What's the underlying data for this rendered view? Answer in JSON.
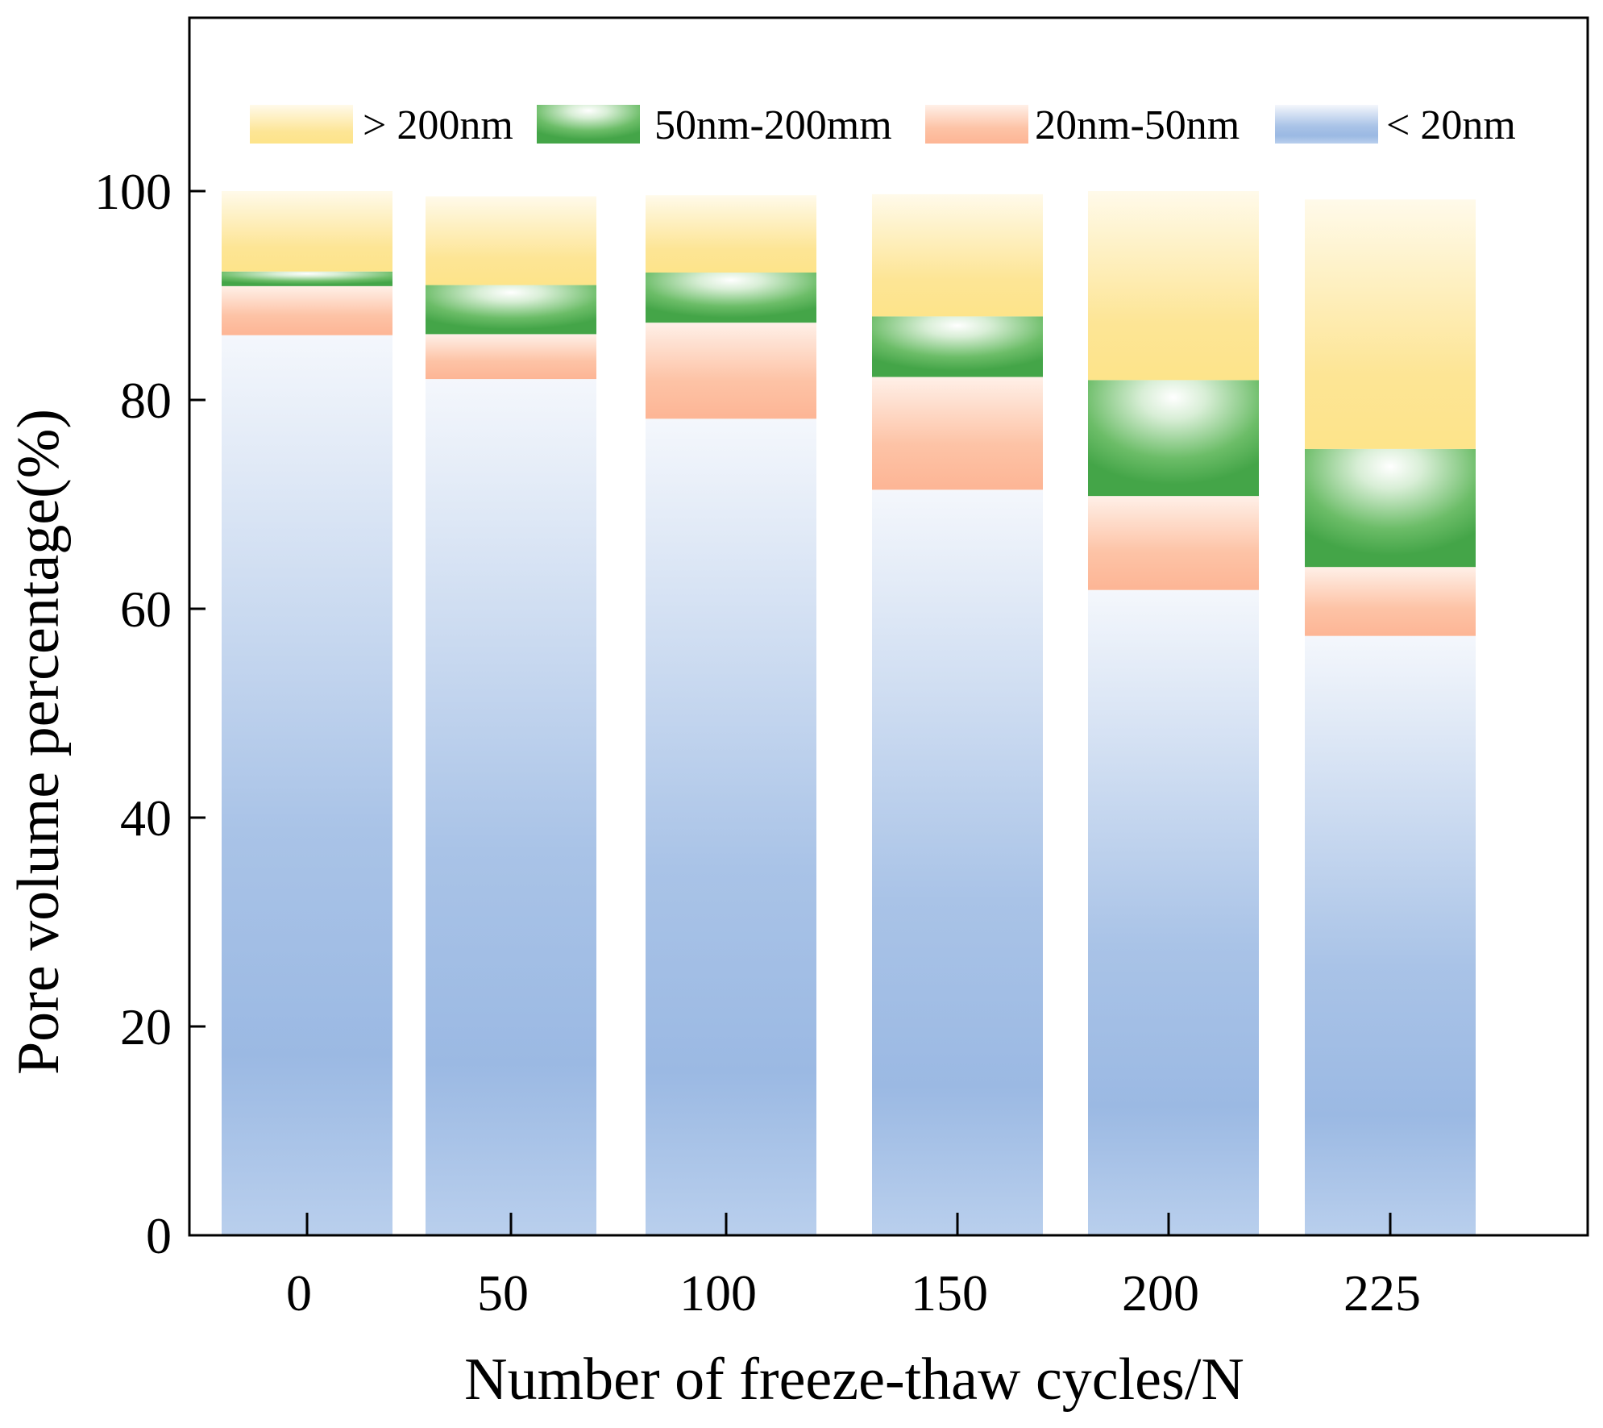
{
  "chart_data": {
    "type": "bar",
    "stacked": true,
    "xlabel": "Number of freeze-thaw cycles/N",
    "ylabel": "Pore volume percentage(%)",
    "categories": [
      "0",
      "50",
      "100",
      "150",
      "200",
      "225"
    ],
    "ylim": [
      0,
      120
    ],
    "yticks": [
      0,
      20,
      40,
      60,
      80,
      100
    ],
    "legend_position": "top",
    "series": [
      {
        "name": "< 20nm",
        "color": "#9dbbe4",
        "values": [
          86.2,
          82.0,
          78.2,
          71.4,
          61.8,
          57.4
        ]
      },
      {
        "name": "20nm-50nm",
        "color": "#fdb99a",
        "values": [
          4.7,
          4.3,
          9.2,
          10.8,
          9.0,
          6.6
        ]
      },
      {
        "name": "50nm-200mm",
        "color": "#4fae52",
        "values": [
          1.4,
          4.7,
          4.8,
          5.8,
          11.1,
          11.3
        ]
      },
      {
        "name": "> 200nm",
        "color": "#fde48a",
        "values": [
          7.7,
          8.5,
          7.4,
          11.7,
          18.1,
          23.9
        ]
      }
    ],
    "legend_order": [
      "> 200nm",
      "50nm-200mm",
      "20nm-50nm",
      "< 20nm"
    ]
  }
}
